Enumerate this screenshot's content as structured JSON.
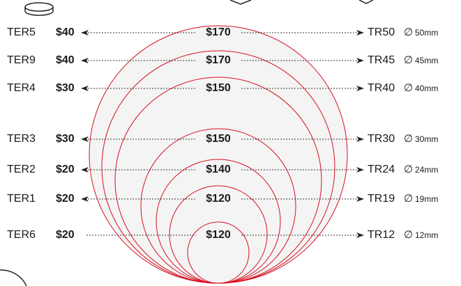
{
  "diameter_symbol": "∅",
  "rows": [
    {
      "left_code": "TER5",
      "left_price": "$40",
      "center_price": "$170",
      "right_code": "TR50",
      "diameter": "50mm"
    },
    {
      "left_code": "TER9",
      "left_price": "$40",
      "center_price": "$170",
      "right_code": "TR45",
      "diameter": "45mm"
    },
    {
      "left_code": "TER4",
      "left_price": "$30",
      "center_price": "$150",
      "right_code": "TR40",
      "diameter": "40mm"
    },
    {
      "left_code": "TER3",
      "left_price": "$30",
      "center_price": "$150",
      "right_code": "TR30",
      "diameter": "30mm"
    },
    {
      "left_code": "TER2",
      "left_price": "$20",
      "center_price": "$140",
      "right_code": "TR24",
      "diameter": "24mm"
    },
    {
      "left_code": "TER1",
      "left_price": "$20",
      "center_price": "$120",
      "right_code": "TR19",
      "diameter": "19mm"
    },
    {
      "left_code": "TER6",
      "left_price": "$20",
      "center_price": "$120",
      "right_code": "TR12",
      "diameter": "12mm"
    }
  ]
}
